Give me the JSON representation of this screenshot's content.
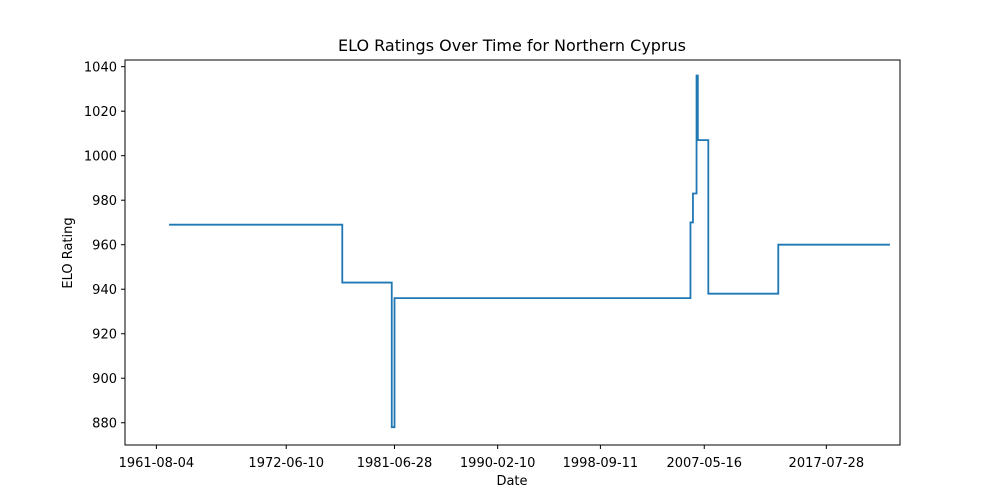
{
  "chart_data": {
    "type": "line",
    "title": "ELO Ratings Over Time for Northern Cyprus",
    "xlabel": "Date",
    "ylabel": "ELO Rating",
    "line_color": "#1f77b4",
    "grid": false,
    "xticks": [
      "1961-08-04",
      "1972-06-10",
      "1981-06-28",
      "1990-02-10",
      "1998-09-11",
      "2007-05-16",
      "2017-07-28"
    ],
    "yticks": [
      880,
      900,
      920,
      940,
      960,
      980,
      1000,
      1020,
      1040
    ],
    "xlim": [
      "1958-12-21",
      "2023-09-23"
    ],
    "ylim": [
      870,
      1043
    ],
    "series": [
      {
        "points": [
          {
            "x": "1962-08-27",
            "y": 969
          },
          {
            "x": "1977-02-15",
            "y": 969
          },
          {
            "x": "1977-02-15",
            "y": 943
          },
          {
            "x": "1981-04-05",
            "y": 943
          },
          {
            "x": "1981-04-05",
            "y": 878
          },
          {
            "x": "1981-06-28",
            "y": 878
          },
          {
            "x": "1981-06-28",
            "y": 936
          },
          {
            "x": "2006-03-21",
            "y": 936
          },
          {
            "x": "2006-03-21",
            "y": 970
          },
          {
            "x": "2006-06-05",
            "y": 970
          },
          {
            "x": "2006-06-05",
            "y": 983
          },
          {
            "x": "2006-09-23",
            "y": 983
          },
          {
            "x": "2006-09-23",
            "y": 1036
          },
          {
            "x": "2006-11-01",
            "y": 1036
          },
          {
            "x": "2006-11-01",
            "y": 1007
          },
          {
            "x": "2007-09-17",
            "y": 1007
          },
          {
            "x": "2007-09-17",
            "y": 938
          },
          {
            "x": "2013-07-22",
            "y": 938
          },
          {
            "x": "2013-07-22",
            "y": 960
          },
          {
            "x": "2022-11-19",
            "y": 960
          }
        ]
      }
    ]
  }
}
